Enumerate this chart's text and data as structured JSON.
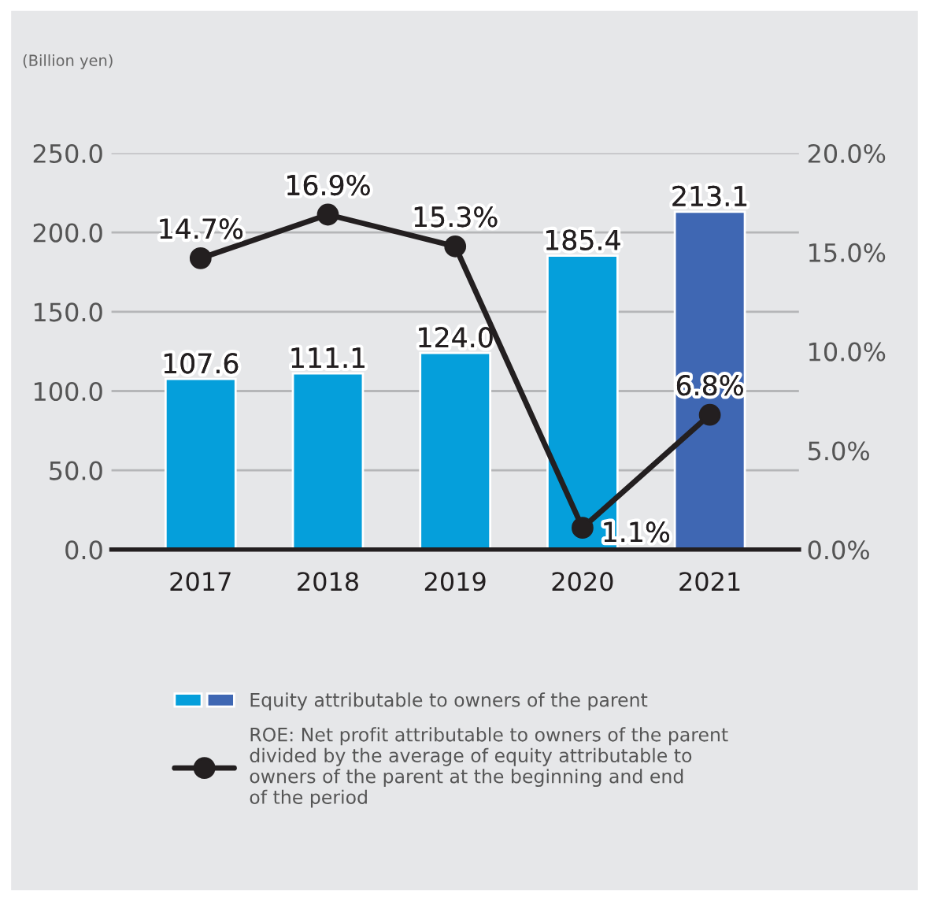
{
  "chart_data": {
    "type": "bar",
    "ylabel": "(Billion yen)",
    "categories": [
      "2017",
      "2018",
      "2019",
      "2020",
      "2021"
    ],
    "series": [
      {
        "name": "Equity attributable to owners of the parent",
        "colors": [
          "#059fdb",
          "#059fdb",
          "#059fdb",
          "#059fdb",
          "#3f67b3"
        ],
        "values": [
          107.6,
          111.1,
          124.0,
          185.4,
          213.1
        ],
        "value_labels": [
          "107.6",
          "111.1",
          "124.0",
          "185.4",
          "213.1"
        ]
      },
      {
        "name": "ROE: Net profit attributable to owners of the parent\ndivided by the average of equity attributable to\nowners of the parent at the beginning and end\nof the period",
        "type": "line",
        "axis": "y2",
        "color": "#231f20",
        "marker": "circle",
        "values": [
          14.7,
          16.9,
          15.3,
          1.1,
          6.8
        ],
        "value_labels": [
          "14.7%",
          "16.9%",
          "15.3%",
          "1.1%",
          "6.8%"
        ]
      }
    ],
    "ylim": [
      0,
      250
    ],
    "yticks": [
      {
        "value": 0,
        "label": "0.0"
      },
      {
        "value": 50,
        "label": "50.0"
      },
      {
        "value": 100,
        "label": "100.0"
      },
      {
        "value": 150,
        "label": "150.0"
      },
      {
        "value": 200,
        "label": "200.0"
      },
      {
        "value": 250,
        "label": "250.0"
      }
    ],
    "y2lim": [
      0,
      20
    ],
    "y2ticks": [
      {
        "value": 0,
        "label": "0.0%"
      },
      {
        "value": 5,
        "label": "5.0%"
      },
      {
        "value": 10,
        "label": "10.0%"
      },
      {
        "value": 15,
        "label": "15.0%"
      },
      {
        "value": 20,
        "label": "20.0%"
      }
    ],
    "grid": "y",
    "legend": "bottom"
  }
}
